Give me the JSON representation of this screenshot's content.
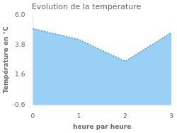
{
  "chart_data": {
    "type": "area",
    "title": "Evolution de la température",
    "xlabel": "heure par heure",
    "ylabel": "Température en °C",
    "x": [
      0,
      1,
      2,
      3
    ],
    "values": [
      5.0,
      4.2,
      2.6,
      4.7
    ],
    "xlim": [
      0,
      3
    ],
    "ylim": [
      -0.6,
      6.0
    ],
    "xticks": [
      0,
      1,
      2,
      3
    ],
    "yticks": [
      -0.6,
      1.6,
      3.8,
      {
        "value": 6.0,
        "label": "6.0"
      }
    ],
    "grid": false,
    "line_style": "dotted"
  }
}
